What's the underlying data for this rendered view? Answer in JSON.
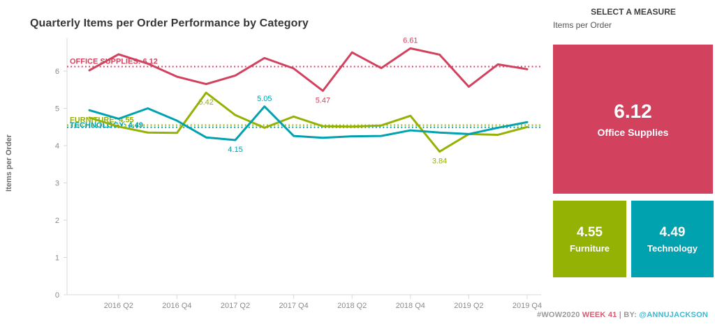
{
  "chart": {
    "title": "Quarterly Items per Order Performance by Category",
    "y_axis_title": "Items per Order"
  },
  "chart_data": {
    "type": "line",
    "title": "Quarterly Items per Order Performance by Category",
    "xlabel": "",
    "ylabel": "Items per Order",
    "ylim": [
      0,
      7
    ],
    "grid": false,
    "legend_position": "none",
    "x": [
      "2016 Q1",
      "2016 Q2",
      "2016 Q3",
      "2016 Q4",
      "2017 Q1",
      "2017 Q2",
      "2017 Q3",
      "2017 Q4",
      "2018 Q1",
      "2018 Q2",
      "2018 Q3",
      "2018 Q4",
      "2019 Q1",
      "2019 Q2",
      "2019 Q3",
      "2019 Q4"
    ],
    "x_labeled_every_other_starting_index": 1,
    "y_ticks": [
      0,
      1,
      2,
      3,
      4,
      5,
      6
    ],
    "series": [
      {
        "name": "Office Supplies",
        "color": "#d2415e",
        "values": [
          6.02,
          6.45,
          6.2,
          5.85,
          5.65,
          5.88,
          6.35,
          6.07,
          5.47,
          6.5,
          6.08,
          6.61,
          6.44,
          5.58,
          6.18,
          6.05
        ]
      },
      {
        "name": "Furniture",
        "color": "#94b203",
        "values": [
          4.75,
          4.51,
          4.35,
          4.34,
          5.42,
          4.82,
          4.48,
          4.78,
          4.52,
          4.51,
          4.54,
          4.8,
          3.84,
          4.31,
          4.29,
          4.5
        ]
      },
      {
        "name": "Technology",
        "color": "#00a2b0",
        "values": [
          4.95,
          4.72,
          5.0,
          4.67,
          4.22,
          4.15,
          5.05,
          4.26,
          4.21,
          4.25,
          4.26,
          4.41,
          4.35,
          4.31,
          4.48,
          4.63
        ]
      }
    ],
    "reference_lines": [
      {
        "label": "OFFICE SUPPLIES: 6.12",
        "value": 6.12,
        "color": "#d2415e",
        "label_offset": 0
      },
      {
        "label": "FURNITURE: 4.55",
        "value": 4.55,
        "color": "#94b203",
        "label_offset": 0
      },
      {
        "label": "TECHNOLOGY: 4.49",
        "value": 4.49,
        "color": "#00a2b0",
        "label_offset": 4
      }
    ],
    "annotations": [
      {
        "series": 0,
        "index": 11,
        "text": "6.61",
        "position": "above"
      },
      {
        "series": 0,
        "index": 8,
        "text": "5.47",
        "position": "below"
      },
      {
        "series": 1,
        "index": 4,
        "text": "5.42",
        "position": "below"
      },
      {
        "series": 1,
        "index": 12,
        "text": "3.84",
        "position": "below"
      },
      {
        "series": 2,
        "index": 6,
        "text": "5.05",
        "position": "above"
      },
      {
        "series": 2,
        "index": 5,
        "text": "4.15",
        "position": "below"
      }
    ]
  },
  "panel": {
    "header": "SELECT A MEASURE",
    "selected_measure": "Items per Order",
    "cards": [
      {
        "value": "6.12",
        "label": "Office Supplies",
        "color": "#d2415e"
      },
      {
        "value": "4.55",
        "label": "Furniture",
        "color": "#94b203"
      },
      {
        "value": "4.49",
        "label": "Technology",
        "color": "#00a2b0"
      }
    ]
  },
  "footer": {
    "hashtag": "#WOW2020",
    "week": "WEEK 41",
    "separator": "|",
    "by": "BY:",
    "handle": "@ANNUJACKSON"
  }
}
